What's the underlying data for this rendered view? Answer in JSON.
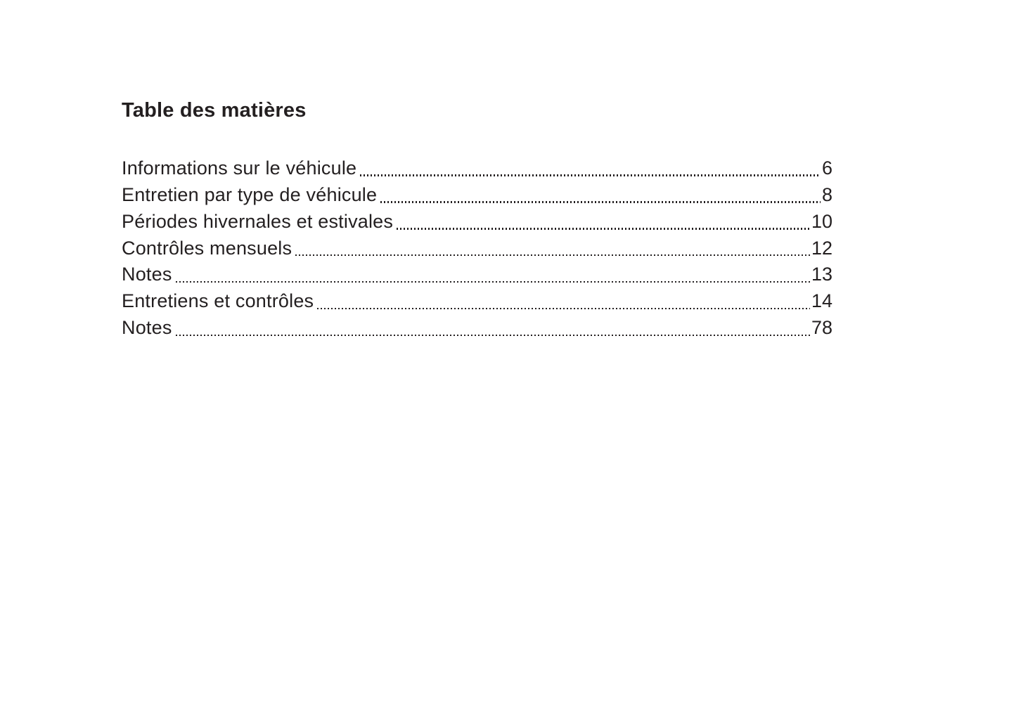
{
  "document": {
    "title": "Table des matières",
    "toc_entries": [
      {
        "label": "Informations sur le véhicule",
        "page": "6"
      },
      {
        "label": "Entretien par type de véhicule",
        "page": "8"
      },
      {
        "label": "Périodes hivernales et estivales",
        "page": "10"
      },
      {
        "label": "Contrôles mensuels",
        "page": "12"
      },
      {
        "label": "Notes",
        "page": "13"
      },
      {
        "label": "Entretiens et contrôles",
        "page": "14"
      },
      {
        "label": "Notes",
        "page": "78"
      }
    ]
  },
  "colors": {
    "text": "#231f20",
    "background": "#ffffff"
  }
}
